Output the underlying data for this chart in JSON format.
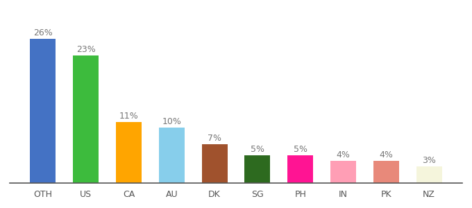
{
  "categories": [
    "OTH",
    "US",
    "CA",
    "AU",
    "DK",
    "SG",
    "PH",
    "IN",
    "PK",
    "NZ"
  ],
  "values": [
    26,
    23,
    11,
    10,
    7,
    5,
    5,
    4,
    4,
    3
  ],
  "labels": [
    "26%",
    "23%",
    "11%",
    "10%",
    "7%",
    "5%",
    "5%",
    "4%",
    "4%",
    "3%"
  ],
  "bar_colors": [
    "#4472c4",
    "#3dbb3d",
    "#ffa500",
    "#87ceeb",
    "#a0522d",
    "#2d6a1f",
    "#ff1493",
    "#ff9eb5",
    "#e8897a",
    "#f5f5dc"
  ],
  "ylim": [
    0,
    30
  ],
  "background_color": "#ffffff",
  "label_fontsize": 9,
  "tick_fontsize": 9
}
